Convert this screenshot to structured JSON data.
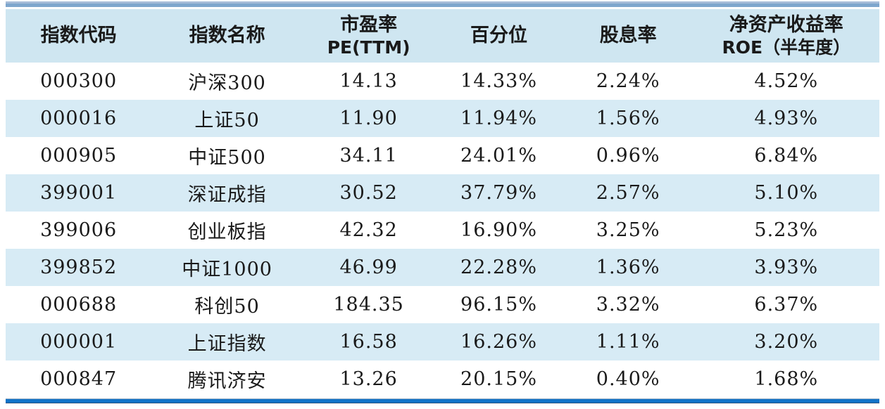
{
  "colors": {
    "header-bg": "#cfe6f1",
    "stripe-bg": "#d7ebf5",
    "top-bar-light": "#a6bcd8",
    "top-bar-main": "#7ea6cd",
    "bottom-bar": "#1173c8",
    "bottom-bar-edge": "#2a5580",
    "text": "#1a1a1a"
  },
  "chart_data": {
    "type": "table",
    "columns": [
      {
        "key": "index-code",
        "line1": "指数代码",
        "line2": ""
      },
      {
        "key": "index-name",
        "line1": "指数名称",
        "line2": ""
      },
      {
        "key": "pe-ttm",
        "line1": "市盈率",
        "line2": "PE(TTM)"
      },
      {
        "key": "percentile",
        "line1": "百分位",
        "line2": ""
      },
      {
        "key": "dividend-yield",
        "line1": "股息率",
        "line2": ""
      },
      {
        "key": "roe",
        "line1": "净资产收益率",
        "line2": "ROE（半年度）"
      }
    ],
    "rows": [
      [
        "000300",
        "沪深300",
        "14.13",
        "14.33%",
        "2.24%",
        "4.52%"
      ],
      [
        "000016",
        "上证50",
        "11.90",
        "11.94%",
        "1.56%",
        "4.93%"
      ],
      [
        "000905",
        "中证500",
        "34.11",
        "24.01%",
        "0.96%",
        "6.84%"
      ],
      [
        "399001",
        "深证成指",
        "30.52",
        "37.79%",
        "2.57%",
        "5.10%"
      ],
      [
        "399006",
        "创业板指",
        "42.32",
        "16.90%",
        "3.25%",
        "5.23%"
      ],
      [
        "399852",
        "中证1000",
        "46.99",
        "22.28%",
        "1.36%",
        "3.93%"
      ],
      [
        "000688",
        "科创50",
        "184.35",
        "96.15%",
        "3.32%",
        "6.37%"
      ],
      [
        "000001",
        "上证指数",
        "16.58",
        "16.26%",
        "1.11%",
        "3.20%"
      ],
      [
        "000847",
        "腾讯济安",
        "13.26",
        "20.15%",
        "0.40%",
        "1.68%"
      ]
    ]
  }
}
